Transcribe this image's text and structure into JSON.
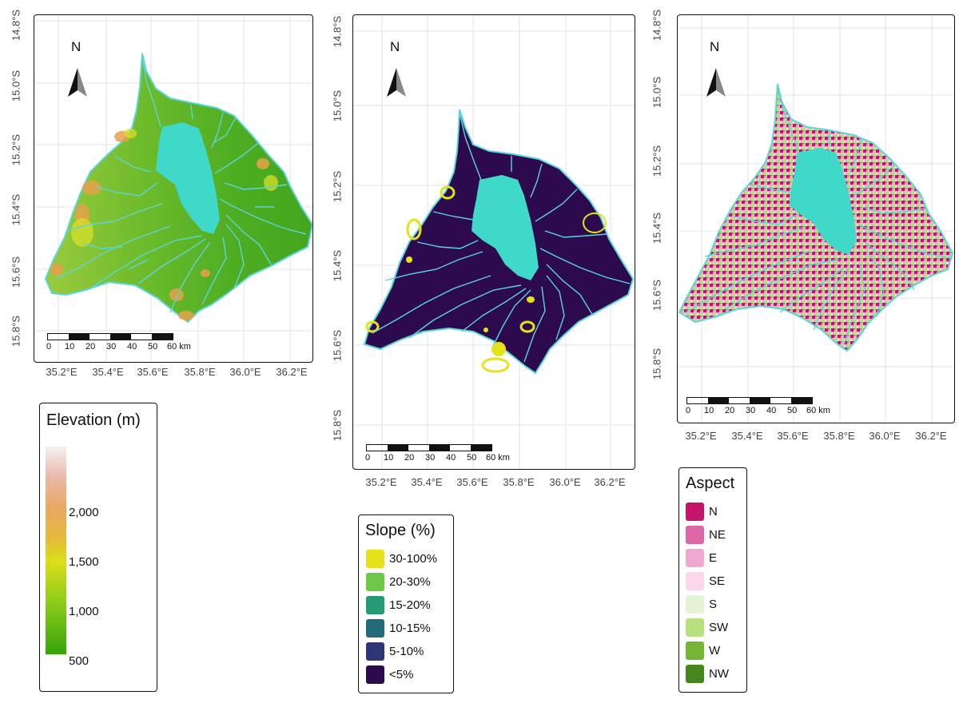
{
  "colors": {
    "lake": "#40d8c8",
    "river": "#5ad6d8",
    "elev_low": "#3aa61c",
    "elev_mid": "#90c83a",
    "slope_bg": "#2d0a4e",
    "slope_hi": "#e4e31a"
  },
  "panels": [
    {
      "id": "elevation",
      "lat_labels": [
        "14.8°S",
        "15.0°S",
        "15.2°S",
        "15.4°S",
        "15.6°S",
        "15.8°S"
      ],
      "lon_labels": [
        "35.2°E",
        "35.4°E",
        "35.6°E",
        "35.8°E",
        "36.0°E",
        "36.2°E"
      ],
      "north_label": "N",
      "scalebar_labels": [
        "0",
        "10",
        "20",
        "30",
        "40",
        "50",
        "60 km"
      ]
    },
    {
      "id": "slope",
      "lat_labels": [
        "14.8°S",
        "15.0°S",
        "15.2°S",
        "15.4°S",
        "15.6°S",
        "15.8°S"
      ],
      "lon_labels": [
        "35.2°E",
        "35.4°E",
        "35.6°E",
        "35.8°E",
        "36.0°E",
        "36.2°E"
      ],
      "north_label": "N",
      "scalebar_labels": [
        "0",
        "10",
        "20",
        "30",
        "40",
        "50",
        "60 km"
      ]
    },
    {
      "id": "aspect",
      "lat_labels": [
        "14.8°S",
        "15.0°S",
        "15.2°S",
        "15.4°S",
        "15.6°S",
        "15.8°S"
      ],
      "lon_labels": [
        "35.2°E",
        "35.4°E",
        "35.6°E",
        "35.8°E",
        "36.0°E",
        "36.2°E"
      ],
      "north_label": "N",
      "scalebar_labels": [
        "0",
        "10",
        "20",
        "30",
        "40",
        "50",
        "60 km"
      ]
    }
  ],
  "legends": {
    "elevation": {
      "title": "Elevation (m)",
      "ticks": [
        "2,000",
        "1,500",
        "1,000",
        "500"
      ]
    },
    "slope": {
      "title": "Slope (%)",
      "items": [
        {
          "label": "30-100%",
          "color": "#e4e31a"
        },
        {
          "label": "20-30%",
          "color": "#6cc845"
        },
        {
          "label": "15-20%",
          "color": "#259a74"
        },
        {
          "label": "10-15%",
          "color": "#226a7c"
        },
        {
          "label": "5-10%",
          "color": "#2f3577"
        },
        {
          "label": "<5%",
          "color": "#2d0a4e"
        }
      ]
    },
    "aspect": {
      "title": "Aspect",
      "items": [
        {
          "label": "N",
          "color": "#c5156b"
        },
        {
          "label": "NE",
          "color": "#de67a8"
        },
        {
          "label": "E",
          "color": "#f1a8d0"
        },
        {
          "label": "SE",
          "color": "#fbd9ea"
        },
        {
          "label": "S",
          "color": "#e5f4d2"
        },
        {
          "label": "SW",
          "color": "#b6e17e"
        },
        {
          "label": "W",
          "color": "#74b535"
        },
        {
          "label": "NW",
          "color": "#46861e"
        }
      ]
    }
  }
}
